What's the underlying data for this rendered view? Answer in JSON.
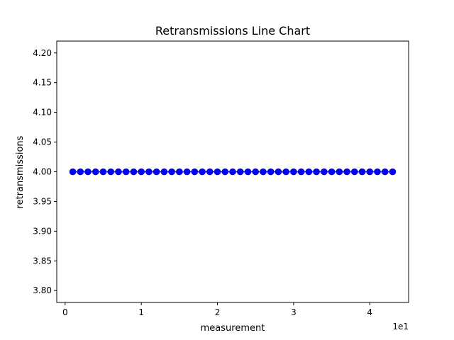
{
  "chart_data": {
    "type": "line",
    "title": "Retransmissions Line Chart",
    "xlabel": "measurement",
    "ylabel": "retransmissions",
    "x_offset_label": "1e1",
    "xlim": [
      -1.1,
      45.1
    ],
    "ylim": [
      3.78,
      4.22
    ],
    "xticks": [
      0,
      10,
      20,
      30,
      40
    ],
    "xtick_labels": [
      "0",
      "1",
      "2",
      "3",
      "4"
    ],
    "yticks": [
      3.8,
      3.85,
      3.9,
      3.95,
      4.0,
      4.05,
      4.1,
      4.15,
      4.2
    ],
    "ytick_labels": [
      "3.80",
      "3.85",
      "3.90",
      "3.95",
      "4.00",
      "4.05",
      "4.10",
      "4.15",
      "4.20"
    ],
    "grid": false,
    "series": [
      {
        "color": "#0000ff",
        "marker": "circle",
        "x": [
          1,
          2,
          3,
          4,
          5,
          6,
          7,
          8,
          9,
          10,
          11,
          12,
          13,
          14,
          15,
          16,
          17,
          18,
          19,
          20,
          21,
          22,
          23,
          24,
          25,
          26,
          27,
          28,
          29,
          30,
          31,
          32,
          33,
          34,
          35,
          36,
          37,
          38,
          39,
          40,
          41,
          42,
          43
        ],
        "y": [
          4,
          4,
          4,
          4,
          4,
          4,
          4,
          4,
          4,
          4,
          4,
          4,
          4,
          4,
          4,
          4,
          4,
          4,
          4,
          4,
          4,
          4,
          4,
          4,
          4,
          4,
          4,
          4,
          4,
          4,
          4,
          4,
          4,
          4,
          4,
          4,
          4,
          4,
          4,
          4,
          4,
          4,
          4
        ]
      }
    ]
  }
}
